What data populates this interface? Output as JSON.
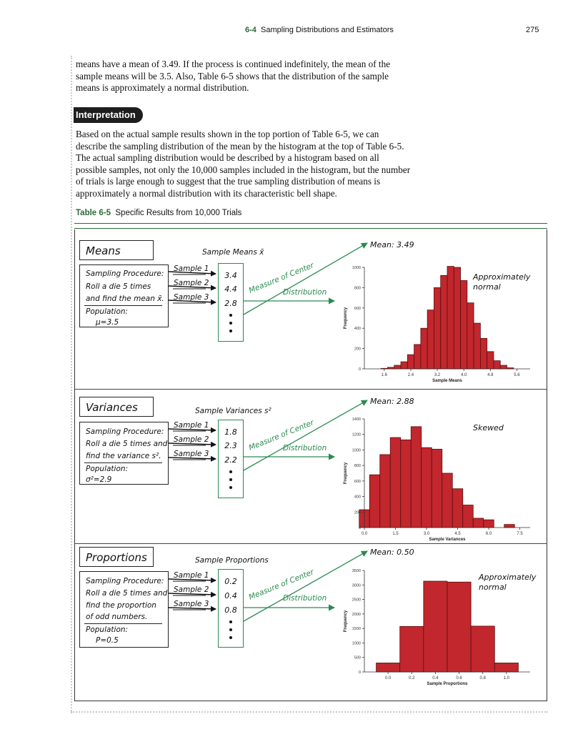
{
  "header": {
    "section_number": "6-4",
    "section_title": "Sampling Distributions and Estimators",
    "page_number": "275"
  },
  "body": {
    "para1": "means have a mean of 3.49. If the process is continued indefinitely, the mean of the sample means will be 3.5. Also, Table 6-5 shows that the distribution of the sample means is approximately a normal distribution.",
    "interp_label": "Interpretation",
    "para2": "Based on the actual sample results shown in the top portion of Table 6-5, we can describe the sampling distribution of the mean by the histogram at the top of Table 6-5. The actual sampling distribution would be described by a histogram based on all possible samples, not only the 10,000 samples included in the histogram, but the number of trials is large enough to suggest that the true sampling distribution of means is approximately a normal distribution with its characteristic bell shape."
  },
  "caption": {
    "number": "Table 6-5",
    "text": "Specific Results from 10,000 Trials"
  },
  "panels": [
    {
      "title": "Means",
      "sample_header": "Sample Means x̄",
      "procedure": [
        "Sampling Procedure:",
        "Roll a die 5 times",
        "and find the mean x̄."
      ],
      "population": [
        "Population:",
        "μ=3.5"
      ],
      "samples": [
        "Sample 1",
        "Sample 2",
        "Sample 3"
      ],
      "values": [
        "3.4",
        "4.4",
        "2.8"
      ],
      "measure": "Measure of Center",
      "distribution": "Distribution",
      "mean_label": "Mean: 3.49",
      "note": [
        "Approximately",
        "normal"
      ]
    },
    {
      "title": "Variances",
      "sample_header": "Sample Variances s²",
      "procedure": [
        "Sampling Procedure:",
        "Roll a die 5 times and",
        "find the variance s²."
      ],
      "population": [
        "Population:",
        "σ²=2.9"
      ],
      "samples": [
        "Sample 1",
        "Sample 2",
        "Sample 3"
      ],
      "values": [
        "1.8",
        "2.3",
        "2.2"
      ],
      "measure": "Measure of Center",
      "distribution": "Distribution",
      "mean_label": "Mean: 2.88",
      "note": [
        "Skewed"
      ]
    },
    {
      "title": "Proportions",
      "sample_header": "Sample Proportions",
      "procedure": [
        "Sampling Procedure:",
        "Roll a die 5 times and",
        "find the proportion",
        "of odd numbers."
      ],
      "population": [
        "Population:",
        "P=0.5"
      ],
      "samples": [
        "Sample 1",
        "Sample 2",
        "Sample 3"
      ],
      "values": [
        "0.2",
        "0.4",
        "0.8"
      ],
      "measure": "Measure of Center",
      "distribution": "Distribution",
      "mean_label": "Mean: 0.50",
      "note": [
        "Approximately",
        "normal"
      ]
    }
  ],
  "colors": {
    "accent_green": "#2a6b35",
    "diagram_green": "#2a8a50",
    "bar_fill": "#c1272d",
    "bar_edge": "#5a0e10"
  },
  "chart_data": [
    {
      "type": "bar",
      "xlabel": "Sample Means",
      "ylabel": "Frequency",
      "xlim": [
        1.0,
        6.0
      ],
      "ylim": [
        0,
        1000
      ],
      "xticks": [
        "1.6",
        "2.4",
        "3.2",
        "4.0",
        "4.8",
        "5.6"
      ],
      "xtick_values": [
        1.6,
        2.4,
        3.2,
        4.0,
        4.8,
        5.6
      ],
      "yticks": [
        "0",
        "200",
        "400",
        "600",
        "800",
        "1000"
      ],
      "ytick_values": [
        0,
        200,
        400,
        600,
        800,
        1000
      ],
      "bin_width": 0.2,
      "bins": [
        1.6,
        1.8,
        2.0,
        2.2,
        2.4,
        2.6,
        2.8,
        3.0,
        3.2,
        3.4,
        3.6,
        3.8,
        4.0,
        4.2,
        4.4,
        4.6,
        4.8,
        5.0,
        5.2,
        5.4
      ],
      "values": [
        5,
        15,
        35,
        70,
        140,
        240,
        400,
        580,
        800,
        920,
        1010,
        1000,
        870,
        650,
        450,
        300,
        170,
        80,
        35,
        10
      ]
    },
    {
      "type": "bar",
      "xlabel": "Sample Variances",
      "ylabel": "Frequency",
      "xlim": [
        0,
        8
      ],
      "ylim": [
        0,
        1400
      ],
      "xticks": [
        "0.0",
        "1.5",
        "3.0",
        "4.5",
        "6.0",
        "7.5"
      ],
      "xtick_values": [
        0,
        1.5,
        3.0,
        4.5,
        6.0,
        7.5
      ],
      "yticks": [
        "0",
        "200",
        "400",
        "600",
        "800",
        "1000",
        "1200",
        "1400"
      ],
      "ytick_values": [
        0,
        200,
        400,
        600,
        800,
        1000,
        1200,
        1400
      ],
      "bin_width": 0.5,
      "bins": [
        0.0,
        0.5,
        1.0,
        1.5,
        2.0,
        2.5,
        3.0,
        3.5,
        4.0,
        4.5,
        5.0,
        5.5,
        6.0,
        6.5,
        7.0,
        7.5
      ],
      "values": [
        230,
        680,
        940,
        1160,
        1130,
        1300,
        1030,
        1010,
        700,
        500,
        290,
        120,
        100,
        0,
        40,
        0
      ]
    },
    {
      "type": "bar",
      "xlabel": "Sample Proportions",
      "ylabel": "Frequency",
      "xlim": [
        -0.2,
        1.2
      ],
      "ylim": [
        0,
        3500
      ],
      "xticks": [
        "0.0",
        "0.2",
        "0.4",
        "0.6",
        "0.8",
        "1.0"
      ],
      "xtick_values": [
        0,
        0.2,
        0.4,
        0.6,
        0.8,
        1.0
      ],
      "yticks": [
        "0",
        "500",
        "1000",
        "1500",
        "2000",
        "2500",
        "3000",
        "3500"
      ],
      "ytick_values": [
        0,
        500,
        1000,
        1500,
        2000,
        2500,
        3000,
        3500
      ],
      "bin_width": 0.2,
      "bins": [
        0.0,
        0.2,
        0.4,
        0.6,
        0.8,
        1.0
      ],
      "values": [
        310,
        1570,
        3130,
        3100,
        1580,
        310
      ]
    }
  ]
}
